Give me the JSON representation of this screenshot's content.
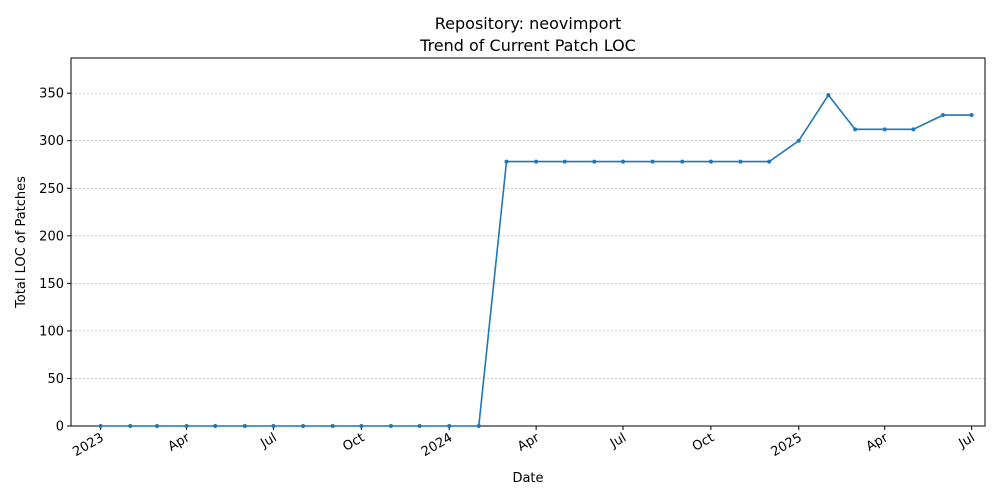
{
  "chart_data": {
    "type": "line",
    "title": "Repository: neovimport",
    "subtitle": "Trend of Current Patch LOC",
    "xlabel": "Date",
    "ylabel": "Total LOC of Patches",
    "ylim": [
      0,
      387
    ],
    "xlim": [
      "2022-12-01",
      "2025-07-15"
    ],
    "grid": "y",
    "line_color": "#1f77b4",
    "y_ticks": [
      0,
      50,
      100,
      150,
      200,
      250,
      300,
      350
    ],
    "x_ticks": [
      {
        "date": "2023-01-01",
        "label": "2023"
      },
      {
        "date": "2023-04-01",
        "label": "Apr"
      },
      {
        "date": "2023-07-01",
        "label": "Jul"
      },
      {
        "date": "2023-10-01",
        "label": "Oct"
      },
      {
        "date": "2024-01-01",
        "label": "2024"
      },
      {
        "date": "2024-04-01",
        "label": "Apr"
      },
      {
        "date": "2024-07-01",
        "label": "Jul"
      },
      {
        "date": "2024-10-01",
        "label": "Oct"
      },
      {
        "date": "2025-01-01",
        "label": "2025"
      },
      {
        "date": "2025-04-01",
        "label": "Apr"
      },
      {
        "date": "2025-07-01",
        "label": "Jul"
      }
    ],
    "x": [
      "2023-01-01",
      "2023-02-01",
      "2023-03-01",
      "2023-04-01",
      "2023-05-01",
      "2023-06-01",
      "2023-07-01",
      "2023-08-01",
      "2023-09-01",
      "2023-10-01",
      "2023-11-01",
      "2023-12-01",
      "2024-01-01",
      "2024-02-01",
      "2024-03-01",
      "2024-04-01",
      "2024-05-01",
      "2024-06-01",
      "2024-07-01",
      "2024-08-01",
      "2024-09-01",
      "2024-10-01",
      "2024-11-01",
      "2024-12-01",
      "2025-01-01",
      "2025-02-01",
      "2025-03-01",
      "2025-04-01",
      "2025-05-01",
      "2025-06-01",
      "2025-07-01"
    ],
    "series": [
      {
        "values": [
          0,
          0,
          0,
          0,
          0,
          0,
          0,
          0,
          0,
          0,
          0,
          0,
          0,
          0,
          278,
          278,
          278,
          278,
          278,
          278,
          278,
          278,
          278,
          278,
          300,
          348,
          312,
          312,
          312,
          327,
          327
        ]
      }
    ]
  }
}
